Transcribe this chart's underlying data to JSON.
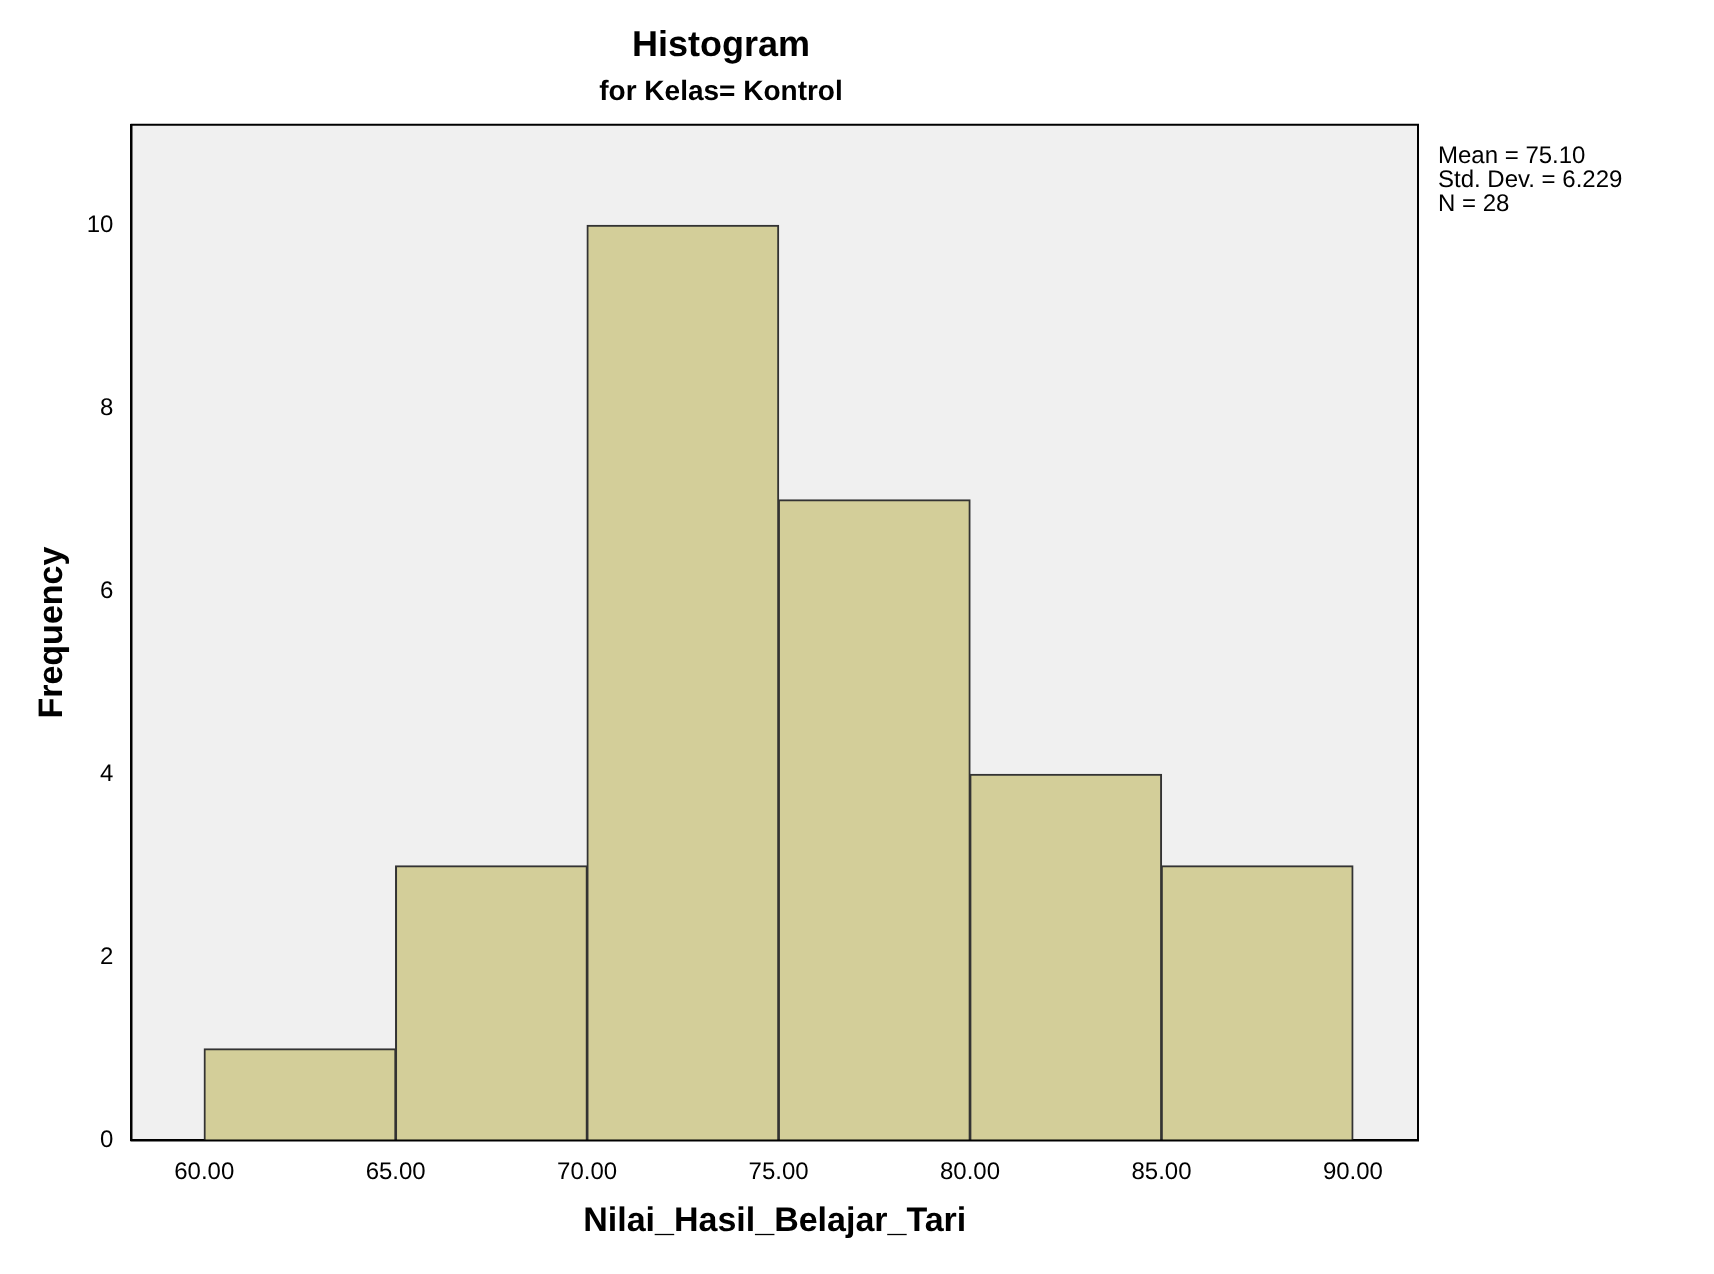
{
  "chart_data": {
    "type": "histogram",
    "title": "Histogram",
    "subtitle": "for Kelas= Kontrol",
    "xlabel": "Nilai_Hasil_Belajar_Tari",
    "ylabel": "Frequency",
    "bins": [
      60,
      65,
      70,
      75,
      80,
      85,
      90
    ],
    "values": [
      1,
      3,
      10,
      7,
      4,
      3
    ],
    "color": "#d3ce99",
    "xlim": [
      58.1,
      91.7
    ],
    "xticks": [
      {
        "value": 60,
        "label": "60.00"
      },
      {
        "value": 65,
        "label": "65.00"
      },
      {
        "value": 70,
        "label": "70.00"
      },
      {
        "value": 75,
        "label": "75.00"
      },
      {
        "value": 80,
        "label": "80.00"
      },
      {
        "value": 85,
        "label": "85.00"
      },
      {
        "value": 90,
        "label": "90.00"
      }
    ],
    "ylim": [
      0,
      11.1
    ],
    "yticks": [
      0,
      2,
      4,
      6,
      8,
      10
    ],
    "grid": false,
    "annotations": [
      "Mean = 75.10",
      "Std. Dev. = 6.229",
      "N = 28"
    ]
  }
}
